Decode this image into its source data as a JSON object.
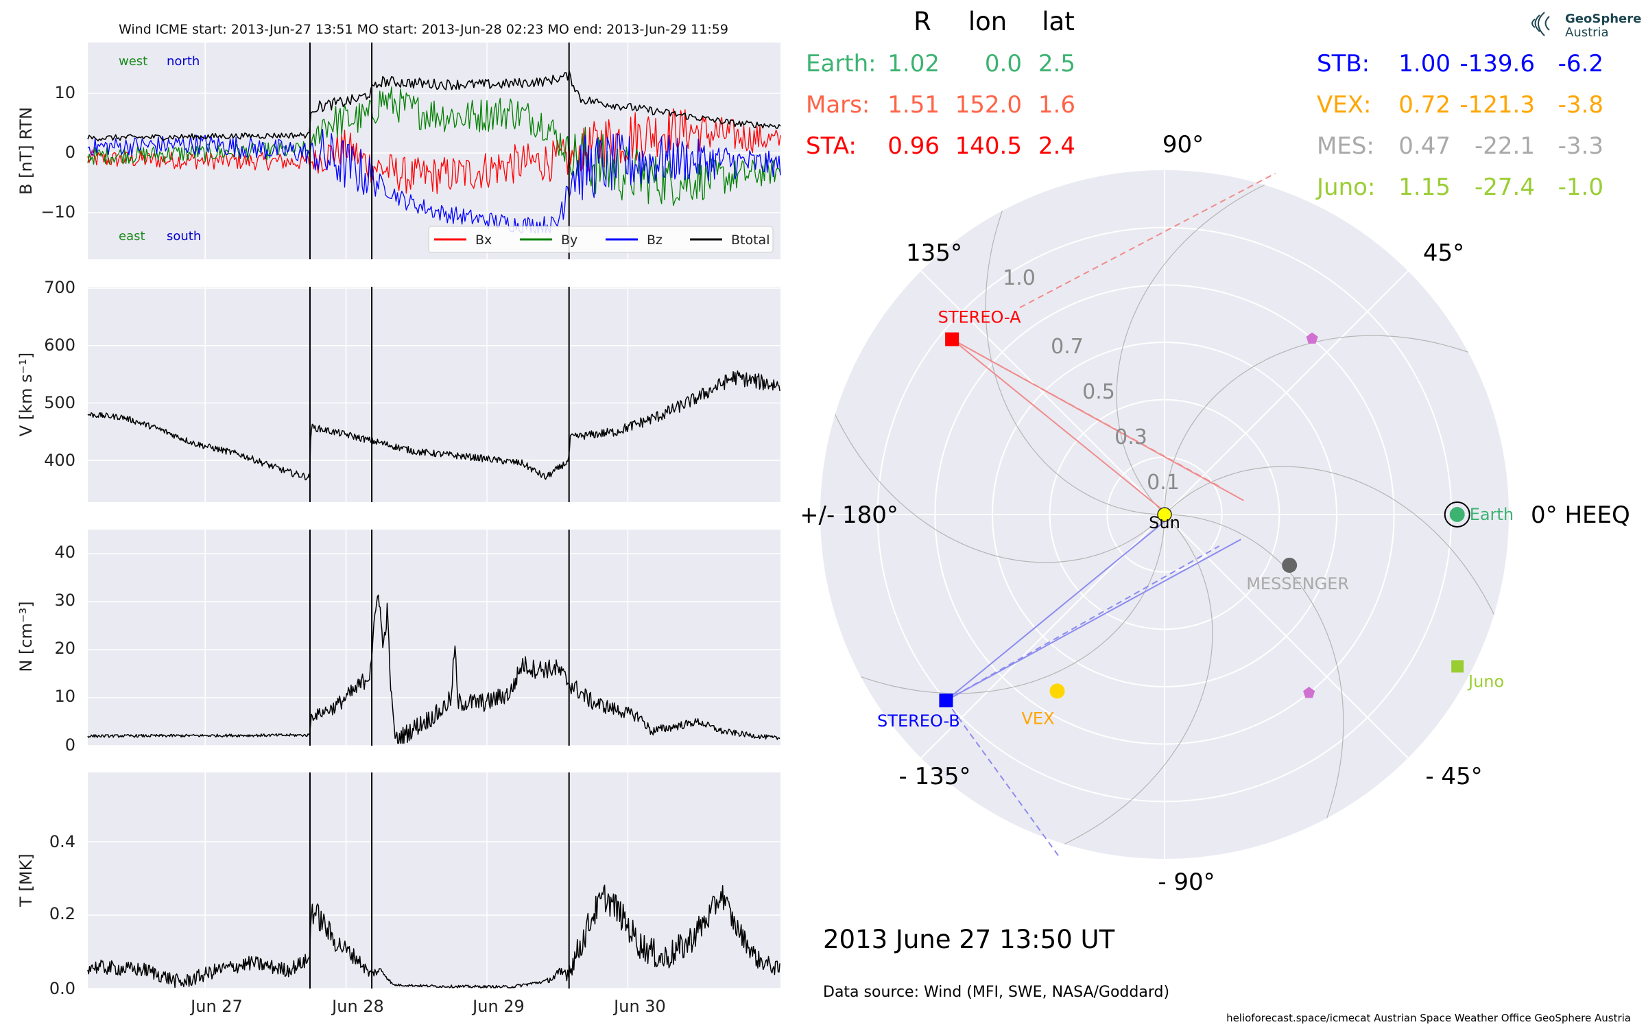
{
  "header": {
    "title": "Wind    ICME start: 2013-Jun-27 13:51   MO start: 2013-Jun-28 02:23   MO end: 2013-Jun-29 11:59"
  },
  "colors": {
    "panel_bg": "#eaeaf2",
    "bx": "#ff0000",
    "by": "#008000",
    "bz": "#0000ff",
    "btotal": "#000000",
    "earth": "#3cb371",
    "mars": "#ff6347",
    "sta": "#ff0000",
    "stb": "#0000ff",
    "vex": "#ffa500",
    "mes": "#a9a9a9",
    "juno": "#9acd32"
  },
  "chart_data": [
    {
      "type": "line",
      "ylabel": "B [nT] RTN",
      "ylim": [
        -18,
        18
      ],
      "yticks": [
        10,
        0,
        -10
      ],
      "ytick_labels": [
        "10",
        "0",
        "−10"
      ],
      "xlim_hours": [
        0,
        118
      ],
      "xticks": [
        "Jun 27",
        "Jun 28",
        "Jun 29",
        "Jun 30"
      ],
      "event_lines": [
        "2013-Jun-27 13:51",
        "2013-Jun-28 02:23",
        "2013-Jun-29 11:59"
      ],
      "direction_labels": {
        "top_left": "west",
        "top_right": "north",
        "bottom_left": "east",
        "bottom_right": "south"
      },
      "legend": [
        "Bx",
        "By",
        "Bz",
        "Btotal"
      ],
      "legend_position": "bottom-right",
      "grid": true
    },
    {
      "type": "line",
      "ylabel": "V [km s⁻¹]",
      "ylim": [
        325,
        700
      ],
      "yticks": [
        700,
        600,
        500,
        400
      ],
      "ytick_labels": [
        "700",
        "600",
        "500",
        "400"
      ],
      "grid": true
    },
    {
      "type": "line",
      "ylabel": "N [cm⁻³]",
      "ylim": [
        0,
        45
      ],
      "yticks": [
        40,
        30,
        20,
        10,
        0
      ],
      "ytick_labels": [
        "40",
        "30",
        "20",
        "10",
        "0"
      ],
      "grid": true
    },
    {
      "type": "line",
      "ylabel": "T [MK]",
      "ylim": [
        0,
        0.6
      ],
      "yticks": [
        0.4,
        0.2,
        0.0
      ],
      "ytick_labels": [
        "0.4",
        "0.2",
        "0.0"
      ],
      "grid": true,
      "xtick_labels": [
        "Jun 27",
        "Jun 28",
        "Jun 29",
        "Jun 30"
      ]
    },
    {
      "type": "scatter",
      "projection": "polar",
      "radial_ticks": [
        "0.1",
        "0.3",
        "0.5",
        "0.7",
        "1.0"
      ],
      "angle_labels": {
        "deg90": "90°",
        "deg45": "45°",
        "deg0": "0° HEEQ",
        "degm45": "- 45°",
        "degm90": "- 90°",
        "degm135": "- 135°",
        "deg180": "+/- 180°",
        "deg135": "135°"
      },
      "bodies": [
        {
          "name": "Sun",
          "r": 0.0,
          "lon": 0.0
        },
        {
          "name": "Earth",
          "r": 1.02,
          "lon": 0.0
        },
        {
          "name": "STEREO-A",
          "r": 0.96,
          "lon": 140.5
        },
        {
          "name": "STEREO-B",
          "r": 1.0,
          "lon": -139.6
        },
        {
          "name": "VEX",
          "r": 0.72,
          "lon": -121.3
        },
        {
          "name": "MESSENGER",
          "r": 0.47,
          "lon": -22.1
        },
        {
          "name": "Juno",
          "r": 1.15,
          "lon": -27.4
        }
      ],
      "table": {
        "headers": [
          "R",
          "lon",
          "lat"
        ],
        "rows": [
          {
            "name": "Earth:",
            "R": "1.02",
            "lon": "0.0",
            "lat": "2.5"
          },
          {
            "name": "Mars:",
            "R": "1.51",
            "lon": "152.0",
            "lat": "1.6"
          },
          {
            "name": "STA:",
            "R": "0.96",
            "lon": "140.5",
            "lat": "2.4"
          },
          {
            "name": "STB:",
            "R": "1.00",
            "lon": "-139.6",
            "lat": "-6.2"
          },
          {
            "name": "VEX:",
            "R": "0.72",
            "lon": "-121.3",
            "lat": "-3.8"
          },
          {
            "name": "MES:",
            "R": "0.47",
            "lon": "-22.1",
            "lat": "-3.3"
          },
          {
            "name": "Juno:",
            "R": "1.15",
            "lon": "-27.4",
            "lat": "-1.0"
          }
        ]
      }
    }
  ],
  "footer": {
    "timestamp": "2013 June 27  13:50 UT",
    "source": "Data source: Wind (MFI, SWE, NASA/Goddard)",
    "credits": "helioforecast.space/icmecat   Austrian Space Weather Office   GeoSphere Austria",
    "logo_line1": "GeoSphere",
    "logo_line2": "Austria"
  }
}
